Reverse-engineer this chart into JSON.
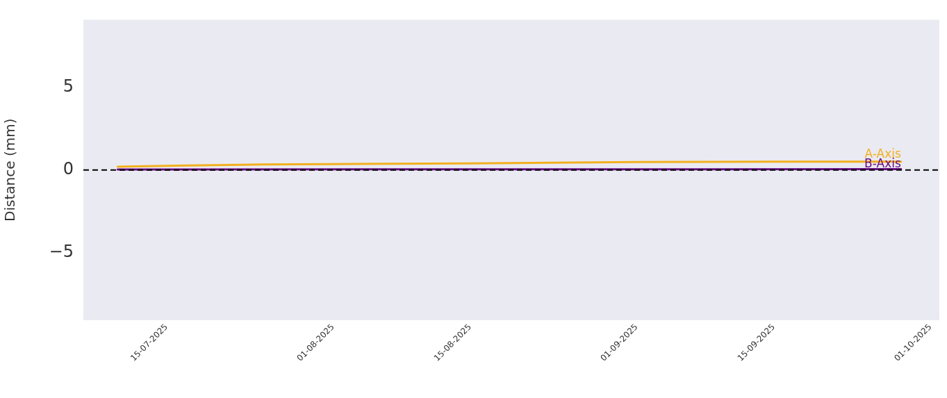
{
  "chart_data": {
    "type": "line",
    "ylabel": "Distance (mm)",
    "xlim": [
      "2025-07-06T12:00",
      "2025-10-01T22:00"
    ],
    "xticks": [
      {
        "value": "2025-07-15",
        "label": "15-07-2025"
      },
      {
        "value": "2025-08-01",
        "label": "01-08-2025"
      },
      {
        "value": "2025-08-15",
        "label": "15-08-2025"
      },
      {
        "value": "2025-09-01",
        "label": "01-09-2025"
      },
      {
        "value": "2025-09-15",
        "label": "15-09-2025"
      },
      {
        "value": "2025-10-01",
        "label": "01-10-2025"
      }
    ],
    "ylim": [
      -9.1,
      9.1
    ],
    "yticks": [
      {
        "value": -5,
        "label": "−5"
      },
      0,
      5
    ],
    "series": [
      {
        "name": "A-Axis",
        "color": "#f2b01e",
        "x": [
          "2025-07-10",
          "2025-07-15",
          "2025-07-25",
          "2025-08-01",
          "2025-08-15",
          "2025-09-01",
          "2025-09-15",
          "2025-09-28"
        ],
        "values": [
          0.2,
          0.25,
          0.33,
          0.36,
          0.4,
          0.48,
          0.5,
          0.5
        ]
      },
      {
        "name": "B-Axis",
        "color": "#6a0d83",
        "x": [
          "2025-07-10",
          "2025-09-28"
        ],
        "values": [
          0.03,
          0.05
        ]
      }
    ],
    "ref_lines": [
      {
        "axis": "y",
        "value": 0,
        "color": "#000000",
        "line_style": "dashed"
      }
    ],
    "grid": false,
    "legend": false,
    "line_style": "solid",
    "marker": "none"
  }
}
